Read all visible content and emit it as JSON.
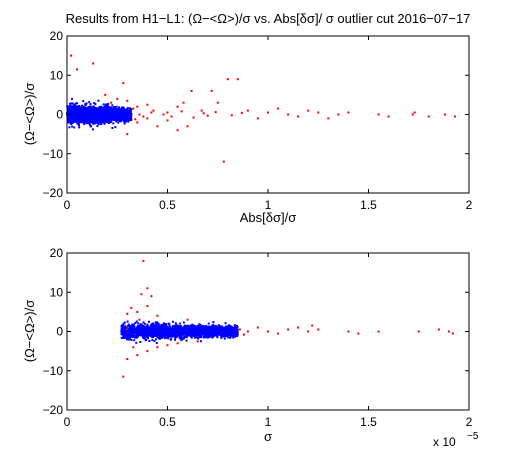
{
  "chart_data": [
    {
      "type": "scatter",
      "title": "Results from H1−L1: (Ω−<Ω>)/σ vs. Abs[δσ]/ σ outlier cut 2016−07−17",
      "xlabel": "Abs[δσ]/σ",
      "ylabel": "(Ω−<Ω>)/σ",
      "xlim": [
        0,
        2
      ],
      "ylim": [
        -20,
        20
      ],
      "x_ticks": [
        0,
        0.5,
        1,
        1.5,
        2
      ],
      "x_tick_labels": [
        "0",
        "0.5",
        "1",
        "1.5",
        "2"
      ],
      "y_ticks": [
        -20,
        -10,
        0,
        10,
        20
      ],
      "y_tick_labels": [
        "−20",
        "−10",
        "0",
        "10",
        "20"
      ],
      "grid": false,
      "legend": "none",
      "series": [
        {
          "color": "#0000ff",
          "cluster": {
            "x_min": 0.0,
            "x_max": 0.32,
            "y_sigma": 1.2
          }
        },
        {
          "color": "#ff0000",
          "points": [
            [
              0.05,
              11.5
            ],
            [
              0.02,
              15.0
            ],
            [
              0.13,
              13.0
            ],
            [
              0.28,
              8.0
            ],
            [
              0.19,
              5.0
            ],
            [
              0.25,
              4.0
            ],
            [
              0.22,
              3.0
            ],
            [
              0.3,
              3.5
            ],
            [
              0.35,
              2.0
            ],
            [
              0.4,
              2.5
            ],
            [
              0.43,
              1.0
            ],
            [
              0.5,
              0.5
            ],
            [
              0.55,
              2.0
            ],
            [
              0.58,
              3.0
            ],
            [
              0.62,
              6.0
            ],
            [
              0.67,
              1.0
            ],
            [
              0.72,
              6.0
            ],
            [
              0.75,
              3.0
            ],
            [
              0.8,
              9.0
            ],
            [
              0.85,
              9.0
            ],
            [
              0.78,
              -12.0
            ],
            [
              0.3,
              -5.0
            ],
            [
              0.35,
              -2.0
            ],
            [
              0.4,
              -1.0
            ],
            [
              0.5,
              -1.5
            ],
            [
              0.55,
              -4.0
            ],
            [
              0.6,
              -3.0
            ],
            [
              0.45,
              -3.0
            ],
            [
              0.9,
              1.0
            ],
            [
              0.95,
              -1.0
            ],
            [
              1.0,
              0.5
            ],
            [
              1.05,
              1.5
            ],
            [
              1.1,
              0.0
            ],
            [
              1.15,
              -0.5
            ],
            [
              1.2,
              1.0
            ],
            [
              1.25,
              0.5
            ],
            [
              1.3,
              -1.0
            ],
            [
              1.35,
              0.0
            ],
            [
              1.4,
              0.5
            ],
            [
              1.55,
              0.0
            ],
            [
              1.6,
              -0.5
            ],
            [
              1.72,
              0.0
            ],
            [
              1.73,
              0.5
            ],
            [
              1.8,
              -0.5
            ],
            [
              1.88,
              0.0
            ],
            [
              1.93,
              -0.5
            ],
            [
              0.36,
              0.0
            ],
            [
              0.38,
              -0.5
            ],
            [
              0.42,
              0.5
            ],
            [
              0.48,
              0.0
            ],
            [
              0.52,
              -0.5
            ],
            [
              0.57,
              0.8
            ],
            [
              0.63,
              -0.8
            ],
            [
              0.68,
              0.3
            ],
            [
              0.7,
              -0.3
            ],
            [
              0.74,
              0.6
            ],
            [
              0.82,
              -0.2
            ],
            [
              0.87,
              0.4
            ],
            [
              0.33,
              1.5
            ],
            [
              0.34,
              -1.2
            ]
          ]
        }
      ]
    },
    {
      "type": "scatter",
      "title": "",
      "xlabel": "σ",
      "ylabel": "(Ω−<Ω>)/σ",
      "xlim": [
        0,
        2
      ],
      "ylim": [
        -20,
        20
      ],
      "x_ticks": [
        0,
        0.5,
        1,
        1.5,
        2
      ],
      "x_tick_labels": [
        "0",
        "0.5",
        "1",
        "1.5",
        "2"
      ],
      "x_scale_label": "x 10",
      "x_scale_exponent": "−5",
      "y_ticks": [
        -20,
        -10,
        0,
        10,
        20
      ],
      "y_tick_labels": [
        "−20",
        "−10",
        "0",
        "10",
        "20"
      ],
      "grid": false,
      "legend": "none",
      "series": [
        {
          "color": "#0000ff",
          "cluster": {
            "x_min": 0.27,
            "x_max": 0.85,
            "y_sigma": 1.0
          }
        },
        {
          "color": "#ff0000",
          "points": [
            [
              0.38,
              18.0
            ],
            [
              0.4,
              11.0
            ],
            [
              0.42,
              9.0
            ],
            [
              0.37,
              9.5
            ],
            [
              0.32,
              6.0
            ],
            [
              0.35,
              5.0
            ],
            [
              0.4,
              6.5
            ],
            [
              0.45,
              4.0
            ],
            [
              0.3,
              4.5
            ],
            [
              0.33,
              -4.0
            ],
            [
              0.35,
              -6.0
            ],
            [
              0.3,
              -7.0
            ],
            [
              0.28,
              -11.5
            ],
            [
              0.4,
              -5.0
            ],
            [
              0.45,
              -4.0
            ],
            [
              0.5,
              -3.5
            ],
            [
              0.55,
              -3.0
            ],
            [
              0.36,
              3.0
            ],
            [
              0.6,
              3.0
            ],
            [
              0.65,
              -2.5
            ],
            [
              0.86,
              0.5
            ],
            [
              0.9,
              0.0
            ],
            [
              0.95,
              1.0
            ],
            [
              1.0,
              0.0
            ],
            [
              1.05,
              -0.5
            ],
            [
              1.1,
              0.5
            ],
            [
              1.15,
              1.0
            ],
            [
              1.2,
              0.0
            ],
            [
              1.22,
              1.5
            ],
            [
              1.25,
              0.5
            ],
            [
              1.4,
              0.0
            ],
            [
              1.45,
              -0.5
            ],
            [
              1.55,
              0.0
            ],
            [
              1.75,
              0.0
            ],
            [
              1.85,
              0.5
            ],
            [
              1.9,
              0.0
            ],
            [
              1.92,
              -0.5
            ],
            [
              0.3,
              0.5
            ],
            [
              0.88,
              -0.8
            ]
          ]
        }
      ]
    }
  ]
}
